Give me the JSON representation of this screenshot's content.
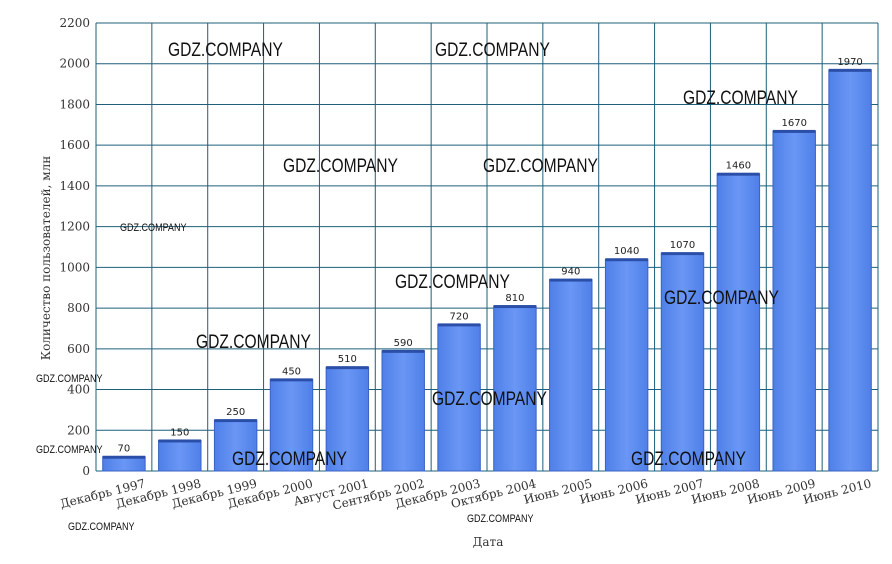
{
  "chart_data": {
    "type": "bar",
    "title": "",
    "xlabel": "Дата",
    "ylabel": "Количество пользователей, млн",
    "categories": [
      "Декабрь 1997",
      "Декабрь 1998",
      "Декабрь 1999",
      "Декабрь 2000",
      "Август 2001",
      "Сентябрь 2002",
      "Декабрь 2003",
      "Октябрь 2004",
      "Июнь 2005",
      "Июнь 2006",
      "Июнь 2007",
      "Июнь 2008",
      "Июнь 2009",
      "Июнь 2010"
    ],
    "values": [
      70,
      150,
      250,
      450,
      510,
      590,
      720,
      810,
      940,
      1040,
      1070,
      1460,
      1670,
      1970
    ],
    "ylim": [
      0,
      2200
    ],
    "yticks": [
      0,
      200,
      400,
      600,
      800,
      1000,
      1200,
      1400,
      1600,
      1800,
      2000,
      2200
    ],
    "grid": true,
    "bar_color": "#5a8cf0"
  },
  "watermark": "GDZ.COMPANY"
}
